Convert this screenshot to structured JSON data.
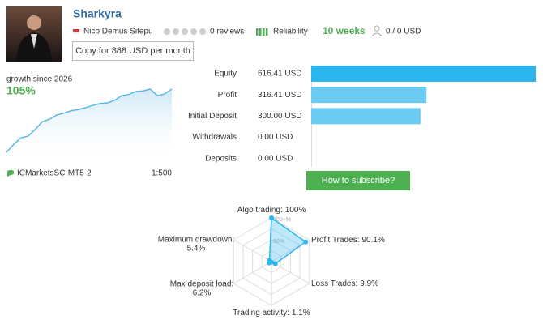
{
  "profile": {
    "name": "Sharkyra",
    "author": "Nico Demus Sitepu",
    "reviews": "0 reviews",
    "reliability": "Reliability",
    "weeks": "10 weeks",
    "subscribers": "0 / 0 USD",
    "copy_button": "Copy for 888 USD per month"
  },
  "growth": {
    "label": "growth since 2026",
    "value_label": "105%",
    "values": [
      0,
      13,
      24,
      27,
      38,
      51,
      55,
      62,
      65,
      69,
      71,
      74,
      78,
      81,
      82,
      86,
      94,
      96,
      101,
      102,
      105,
      94,
      97,
      105
    ],
    "broker": "ICMarketsSC-MT5-2",
    "leverage": "1:500"
  },
  "account": {
    "rows": [
      {
        "label": "Equity",
        "value": 616.41,
        "value_label": "616.41 USD"
      },
      {
        "label": "Profit",
        "value": 316.41,
        "value_label": "316.41 USD"
      },
      {
        "label": "Initial Deposit",
        "value": 300,
        "value_label": "300.00 USD"
      },
      {
        "label": "Withdrawals",
        "value": 0,
        "value_label": "0.00 USD"
      },
      {
        "label": "Deposits",
        "value": 0,
        "value_label": "0.00 USD"
      }
    ]
  },
  "subscribe_button": "How to subscribe?",
  "radar": {
    "rings": [
      {
        "value": 100,
        "label": "100+%"
      },
      {
        "value": 50,
        "label": "50%"
      }
    ],
    "axes": [
      {
        "name": "Algo trading:",
        "value": 100,
        "value_label": "100%"
      },
      {
        "name": "Profit Trades:",
        "value": 90.1,
        "value_label": "90.1%"
      },
      {
        "name": "Loss Trades:",
        "value": 9.9,
        "value_label": "9.9%"
      },
      {
        "name": "Trading activity:",
        "value": 1.1,
        "value_label": "1.1%"
      },
      {
        "name": "Max deposit load:",
        "value": 6.2,
        "value_label": "6.2%"
      },
      {
        "name": "Maximum drawdown:",
        "value": 5.4,
        "value_label": "5.4%"
      }
    ]
  }
}
